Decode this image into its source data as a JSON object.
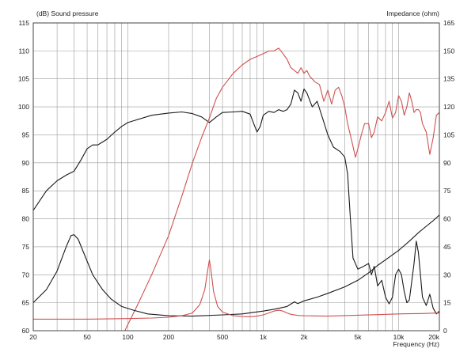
{
  "chart_data": {
    "type": "line",
    "title": "",
    "left_axis_label": "(dB)  Sound pressure",
    "right_axis_label": "Impedance  (ohm)",
    "xlabel": "Frequency  (Hz)",
    "x_scale": "log",
    "xlim": [
      20,
      20000
    ],
    "ylim_left": [
      60,
      115
    ],
    "ylim_right": [
      0,
      165
    ],
    "grid": true,
    "x_tick_labels": [
      {
        "value": 20,
        "label": "20"
      },
      {
        "value": 50,
        "label": "50"
      },
      {
        "value": 100,
        "label": "100"
      },
      {
        "value": 200,
        "label": "200"
      },
      {
        "value": 500,
        "label": "500"
      },
      {
        "value": 1000,
        "label": "1k"
      },
      {
        "value": 2000,
        "label": "2k"
      },
      {
        "value": 5000,
        "label": "5k"
      },
      {
        "value": 10000,
        "label": "10k"
      },
      {
        "value": 20000,
        "label": "20k"
      }
    ],
    "y_left_ticks": [
      60,
      65,
      70,
      75,
      80,
      85,
      90,
      95,
      100,
      105,
      110,
      115
    ],
    "y_right_ticks": [
      0,
      15,
      30,
      45,
      60,
      75,
      90,
      105,
      120,
      135,
      150,
      165
    ],
    "colors": {
      "spl_onaxis": "#1a1a1a",
      "spl_offaxis": "#d05050",
      "impedance": "#1a1a1a",
      "impedance_red": "#d05050",
      "grid": "#9a9a9a"
    },
    "series": [
      {
        "axis": "left",
        "color": "#1a1a1a",
        "points": [
          [
            20,
            81.5
          ],
          [
            25,
            85
          ],
          [
            30,
            86.8
          ],
          [
            35,
            87.8
          ],
          [
            40,
            88.5
          ],
          [
            45,
            90.5
          ],
          [
            50,
            92.5
          ],
          [
            55,
            93.2
          ],
          [
            60,
            93.2
          ],
          [
            70,
            94.2
          ],
          [
            80,
            95.5
          ],
          [
            90,
            96.5
          ],
          [
            100,
            97.2
          ],
          [
            150,
            98.5
          ],
          [
            200,
            98.9
          ],
          [
            250,
            99.1
          ],
          [
            300,
            98.8
          ],
          [
            350,
            98.2
          ],
          [
            400,
            97.2
          ],
          [
            450,
            98.2
          ],
          [
            500,
            99
          ],
          [
            600,
            99.1
          ],
          [
            700,
            99.2
          ],
          [
            800,
            98.7
          ],
          [
            850,
            97
          ],
          [
            900,
            95.5
          ],
          [
            950,
            96.5
          ],
          [
            1000,
            98.5
          ],
          [
            1100,
            99.2
          ],
          [
            1200,
            99
          ],
          [
            1300,
            99.5
          ],
          [
            1400,
            99.2
          ],
          [
            1500,
            99.5
          ],
          [
            1600,
            100.5
          ],
          [
            1700,
            103
          ],
          [
            1800,
            102.5
          ],
          [
            1900,
            101
          ],
          [
            2000,
            103.2
          ],
          [
            2100,
            102.5
          ],
          [
            2300,
            100
          ],
          [
            2500,
            101
          ],
          [
            2700,
            98.5
          ],
          [
            3000,
            95
          ],
          [
            3300,
            92.8
          ],
          [
            3700,
            92
          ],
          [
            4000,
            91
          ],
          [
            4200,
            88
          ],
          [
            4400,
            80
          ],
          [
            4600,
            73
          ],
          [
            5000,
            71
          ],
          [
            5500,
            71.5
          ],
          [
            6000,
            72
          ],
          [
            6300,
            70
          ],
          [
            6600,
            71.5
          ],
          [
            7000,
            68
          ],
          [
            7500,
            69
          ],
          [
            8000,
            66
          ],
          [
            8500,
            64.8
          ],
          [
            9000,
            66
          ],
          [
            9500,
            70
          ],
          [
            10000,
            71
          ],
          [
            10500,
            70
          ],
          [
            11000,
            67
          ],
          [
            11500,
            65
          ],
          [
            12000,
            65.5
          ],
          [
            13000,
            72
          ],
          [
            13500,
            76
          ],
          [
            14000,
            74
          ],
          [
            14500,
            70
          ],
          [
            15000,
            66
          ],
          [
            16000,
            64.5
          ],
          [
            17000,
            66.5
          ],
          [
            18000,
            64
          ],
          [
            19000,
            63
          ],
          [
            20000,
            63.5
          ]
        ]
      },
      {
        "axis": "left",
        "color": "#d05050",
        "points": [
          [
            95,
            60
          ],
          [
            120,
            65
          ],
          [
            150,
            70
          ],
          [
            200,
            77
          ],
          [
            250,
            84
          ],
          [
            300,
            90
          ],
          [
            350,
            94.5
          ],
          [
            400,
            98
          ],
          [
            450,
            101.5
          ],
          [
            500,
            103.5
          ],
          [
            600,
            106
          ],
          [
            700,
            107.5
          ],
          [
            800,
            108.5
          ],
          [
            900,
            109
          ],
          [
            1000,
            109.5
          ],
          [
            1100,
            110
          ],
          [
            1200,
            110
          ],
          [
            1300,
            110.5
          ],
          [
            1400,
            109.5
          ],
          [
            1500,
            108.5
          ],
          [
            1600,
            107
          ],
          [
            1700,
            106.5
          ],
          [
            1800,
            106
          ],
          [
            1900,
            107
          ],
          [
            2000,
            106
          ],
          [
            2100,
            106.5
          ],
          [
            2200,
            105.5
          ],
          [
            2400,
            104.5
          ],
          [
            2600,
            104
          ],
          [
            2800,
            101
          ],
          [
            3000,
            103
          ],
          [
            3200,
            100.5
          ],
          [
            3400,
            103
          ],
          [
            3600,
            103.5
          ],
          [
            3800,
            102
          ],
          [
            4000,
            100
          ],
          [
            4200,
            97
          ],
          [
            4500,
            94
          ],
          [
            4800,
            91
          ],
          [
            5000,
            92.5
          ],
          [
            5300,
            95
          ],
          [
            5600,
            97
          ],
          [
            6000,
            97
          ],
          [
            6300,
            94.5
          ],
          [
            6600,
            95.5
          ],
          [
            7000,
            98.2
          ],
          [
            7500,
            97.5
          ],
          [
            8000,
            99
          ],
          [
            8500,
            101
          ],
          [
            9000,
            98
          ],
          [
            9500,
            99
          ],
          [
            10000,
            102
          ],
          [
            10500,
            101
          ],
          [
            11000,
            98.5
          ],
          [
            11500,
            100
          ],
          [
            12000,
            102.5
          ],
          [
            12500,
            101
          ],
          [
            13000,
            99
          ],
          [
            13500,
            99.5
          ],
          [
            14000,
            99.5
          ],
          [
            14500,
            99
          ],
          [
            15000,
            97
          ],
          [
            16000,
            95.5
          ],
          [
            17000,
            91.5
          ],
          [
            18000,
            94.5
          ],
          [
            19000,
            98.5
          ],
          [
            20000,
            99
          ]
        ]
      },
      {
        "axis": "right",
        "color": "#1a1a1a",
        "points": [
          [
            20,
            15
          ],
          [
            25,
            22
          ],
          [
            30,
            32
          ],
          [
            35,
            45
          ],
          [
            38,
            51
          ],
          [
            40,
            51.5
          ],
          [
            43,
            49
          ],
          [
            47,
            42
          ],
          [
            55,
            30
          ],
          [
            65,
            22
          ],
          [
            75,
            17
          ],
          [
            90,
            13
          ],
          [
            110,
            11
          ],
          [
            140,
            9
          ],
          [
            200,
            8
          ],
          [
            300,
            7.8
          ],
          [
            500,
            8.5
          ],
          [
            700,
            9
          ],
          [
            1000,
            10.5
          ],
          [
            1200,
            11.5
          ],
          [
            1500,
            13
          ],
          [
            1700,
            15.5
          ],
          [
            1800,
            14.5
          ],
          [
            2000,
            16
          ],
          [
            2500,
            18
          ],
          [
            3000,
            20
          ],
          [
            4000,
            23.5
          ],
          [
            5000,
            27
          ],
          [
            6000,
            31
          ],
          [
            7000,
            35
          ],
          [
            8000,
            38
          ],
          [
            10000,
            43
          ],
          [
            12000,
            48
          ],
          [
            14000,
            52.5
          ],
          [
            16000,
            56
          ],
          [
            18000,
            59
          ],
          [
            20000,
            62
          ]
        ]
      },
      {
        "axis": "right",
        "color": "#d05050",
        "points": [
          [
            20,
            6.2
          ],
          [
            50,
            6.2
          ],
          [
            100,
            6.5
          ],
          [
            150,
            6.8
          ],
          [
            200,
            7.2
          ],
          [
            250,
            8
          ],
          [
            300,
            9.5
          ],
          [
            340,
            14
          ],
          [
            370,
            22
          ],
          [
            390,
            33
          ],
          [
            400,
            38
          ],
          [
            410,
            33
          ],
          [
            430,
            21
          ],
          [
            460,
            13
          ],
          [
            500,
            10
          ],
          [
            600,
            8
          ],
          [
            700,
            7.6
          ],
          [
            800,
            7.5
          ],
          [
            900,
            7.8
          ],
          [
            1000,
            8.5
          ],
          [
            1100,
            9.5
          ],
          [
            1200,
            10.5
          ],
          [
            1300,
            11
          ],
          [
            1400,
            10.5
          ],
          [
            1500,
            9.5
          ],
          [
            1600,
            8.8
          ],
          [
            1800,
            8.2
          ],
          [
            2000,
            8
          ],
          [
            3000,
            7.8
          ],
          [
            5000,
            8.3
          ],
          [
            7000,
            8.6
          ],
          [
            10000,
            9
          ],
          [
            15000,
            9.2
          ],
          [
            20000,
            9.5
          ]
        ]
      }
    ]
  }
}
